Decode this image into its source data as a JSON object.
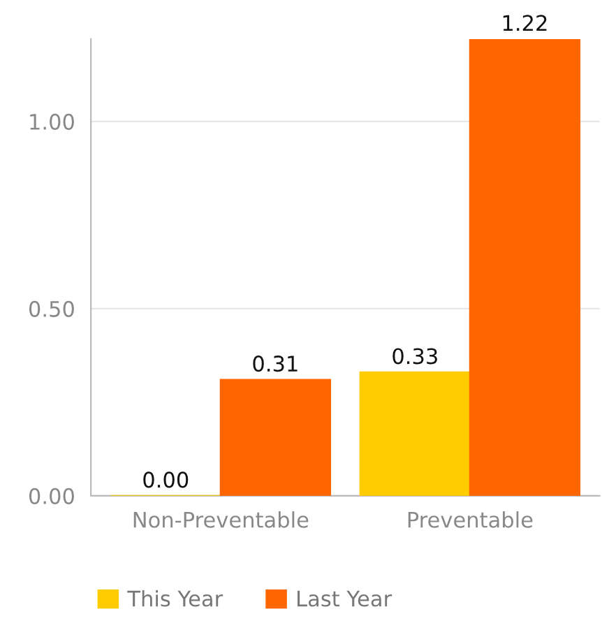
{
  "chart_data": {
    "type": "bar",
    "categories": [
      "Non-Preventable",
      "Preventable"
    ],
    "series": [
      {
        "name": "This Year",
        "color": "#ffcc00",
        "values": [
          0,
          0.33
        ],
        "value_labels": [
          "0.00",
          "0.33"
        ]
      },
      {
        "name": "Last Year",
        "color": "#ff6600",
        "values": [
          0.31,
          1.22
        ],
        "value_labels": [
          "0.31",
          "1.22"
        ]
      }
    ],
    "ylim": [
      0,
      1.22
    ],
    "yticks": [
      {
        "value": 0,
        "label": "0.00"
      },
      {
        "value": 0.5,
        "label": "0.50"
      },
      {
        "value": 1,
        "label": "1.00"
      }
    ],
    "grid": "y",
    "legend": "bottom left"
  }
}
